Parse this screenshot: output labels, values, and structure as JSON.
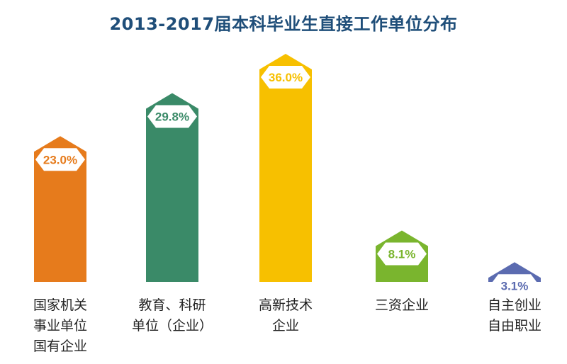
{
  "chart_data": {
    "type": "bar",
    "title": "2013-2017届本科毕业生直接工作单位分布",
    "categories": [
      [
        "国家机关",
        "事业单位",
        "国有企业"
      ],
      [
        "教育、科研",
        "单位（企业）"
      ],
      [
        "高新技术",
        "企业"
      ],
      [
        "三资企业"
      ],
      [
        "自主创业",
        "自由职业"
      ]
    ],
    "values": [
      23.0,
      29.8,
      36.0,
      8.1,
      3.1
    ],
    "value_labels": [
      "23.0%",
      "29.8%",
      "36.0%",
      "8.1%",
      "3.1%"
    ],
    "colors": [
      "#e67b1c",
      "#3a8a68",
      "#f7c000",
      "#7ab52e",
      "#5b6bb0"
    ],
    "unit": "%",
    "ylim": [
      0,
      36.0
    ],
    "grid": false,
    "legend": "none"
  }
}
